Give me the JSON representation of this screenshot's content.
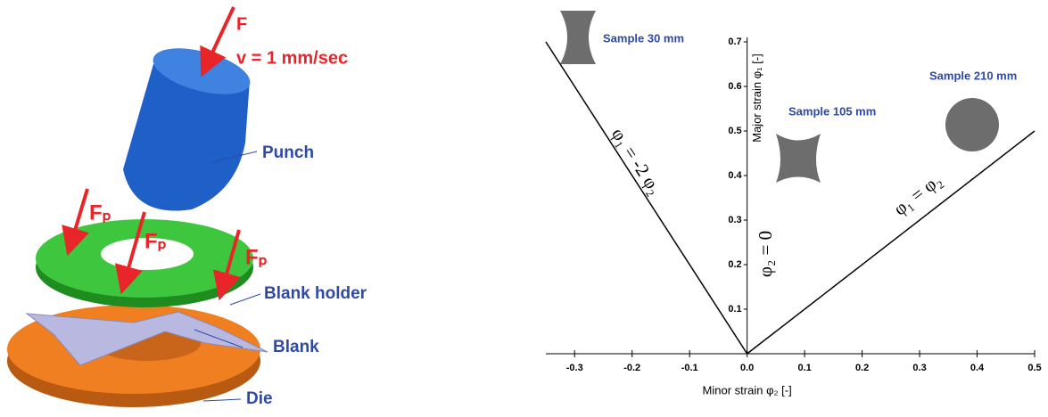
{
  "diagram": {
    "force": "F",
    "speed": "v = 1 mm/sec",
    "punch": "Punch",
    "holder_forces": [
      "Fₚ",
      "Fₚ",
      "Fₚ"
    ],
    "blank_holder": "Blank holder",
    "blank": "Blank",
    "die": "Die"
  },
  "chart_data": {
    "type": "line",
    "x_label": "Minor strain φ₂ [-]",
    "y_label": "Major strain φ₁ [-]",
    "series": [
      {
        "name": "φ₁ = -2 φ₂",
        "color": "#000000",
        "x": [
          -0.35,
          0
        ],
        "values": [
          0.7,
          0
        ]
      },
      {
        "name": "φ₁ = φ₂",
        "color": "#000000",
        "x": [
          0,
          0.5
        ],
        "values": [
          0,
          0.5
        ]
      }
    ],
    "annotations": [
      "φ₂ = 0",
      "Sample 30 mm",
      "Sample 105 mm",
      "Sample 210 mm"
    ],
    "xlim": [
      -0.35,
      0.5
    ],
    "ylim": [
      0,
      0.71
    ],
    "xticks": [
      -0.3,
      -0.2,
      -0.1,
      {
        "value": 0,
        "label": "0.0"
      },
      0.1,
      0.2,
      0.3,
      0.4,
      0.5
    ],
    "yticks": [
      0.1,
      0.2,
      0.3,
      0.4,
      0.5,
      0.6,
      0.7
    ]
  }
}
